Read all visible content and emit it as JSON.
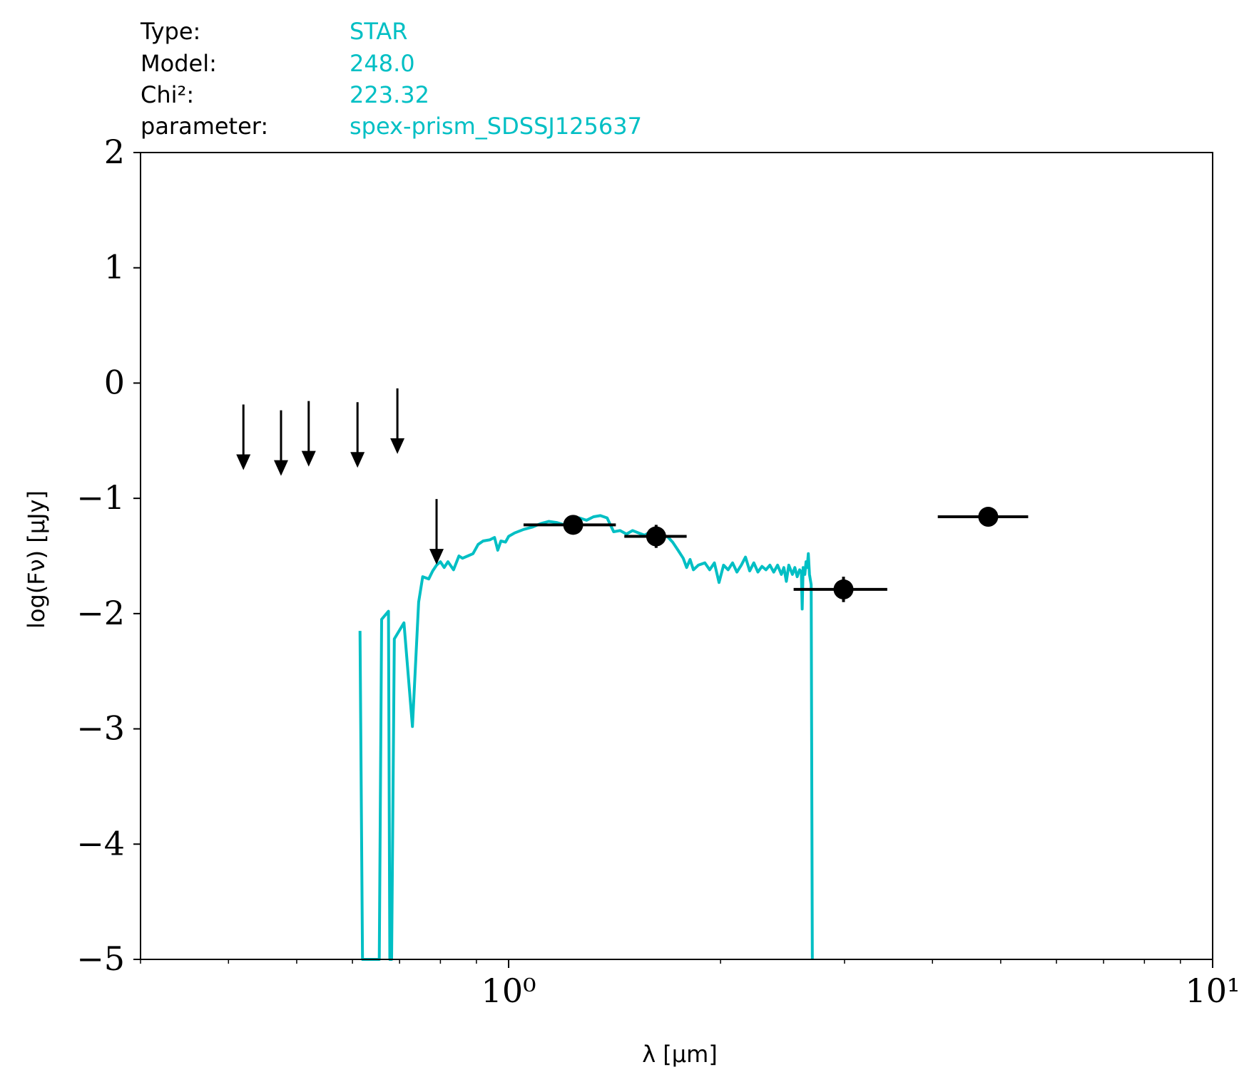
{
  "info": {
    "rows": [
      {
        "label": "Type:",
        "value": "STAR"
      },
      {
        "label": "Model:",
        "value": "248.0"
      },
      {
        "label": "Chi²:",
        "value": "223.32"
      },
      {
        "label": "parameter:",
        "value": "spex-prism_SDSSJ125637"
      }
    ],
    "value_color": "#00BFC4"
  },
  "chart_data": {
    "type": "scatter",
    "title": "",
    "xlabel": "λ [μm]",
    "ylabel": "log(Fν) [μJy]",
    "xscale": "log",
    "xlim": [
      0.3,
      10
    ],
    "ylim": [
      -5,
      2
    ],
    "grid": false,
    "x_tick_labels": [
      {
        "value": 1,
        "label": "10⁰"
      },
      {
        "value": 10,
        "label": "10¹"
      }
    ],
    "y_tick_labels": [
      {
        "value": 2,
        "label": "2"
      },
      {
        "value": 1,
        "label": "1"
      },
      {
        "value": 0,
        "label": "0"
      },
      {
        "value": -1,
        "label": "−1"
      },
      {
        "value": -2,
        "label": "−2"
      },
      {
        "value": -3,
        "label": "−3"
      },
      {
        "value": -4,
        "label": "−4"
      },
      {
        "value": -5,
        "label": "−5"
      }
    ],
    "model_spectrum": {
      "color": "#00BFC4",
      "points": [
        [
          0.615,
          -2.15
        ],
        [
          0.62,
          -5.0
        ],
        [
          0.655,
          -5.0
        ],
        [
          0.66,
          -2.05
        ],
        [
          0.675,
          -1.98
        ],
        [
          0.678,
          -5.0
        ],
        [
          0.682,
          -5.0
        ],
        [
          0.688,
          -2.22
        ],
        [
          0.71,
          -2.08
        ],
        [
          0.73,
          -2.98
        ],
        [
          0.745,
          -1.9
        ],
        [
          0.755,
          -1.68
        ],
        [
          0.77,
          -1.7
        ],
        [
          0.78,
          -1.63
        ],
        [
          0.79,
          -1.58
        ],
        [
          0.8,
          -1.55
        ],
        [
          0.81,
          -1.6
        ],
        [
          0.82,
          -1.55
        ],
        [
          0.835,
          -1.62
        ],
        [
          0.85,
          -1.5
        ],
        [
          0.86,
          -1.52
        ],
        [
          0.875,
          -1.5
        ],
        [
          0.89,
          -1.48
        ],
        [
          0.905,
          -1.4
        ],
        [
          0.92,
          -1.37
        ],
        [
          0.94,
          -1.36
        ],
        [
          0.955,
          -1.34
        ],
        [
          0.965,
          -1.45
        ],
        [
          0.975,
          -1.37
        ],
        [
          0.99,
          -1.38
        ],
        [
          1.0,
          -1.33
        ],
        [
          1.02,
          -1.3
        ],
        [
          1.05,
          -1.27
        ],
        [
          1.08,
          -1.25
        ],
        [
          1.11,
          -1.22
        ],
        [
          1.14,
          -1.2
        ],
        [
          1.17,
          -1.21
        ],
        [
          1.2,
          -1.23
        ],
        [
          1.23,
          -1.2
        ],
        [
          1.26,
          -1.17
        ],
        [
          1.29,
          -1.19
        ],
        [
          1.32,
          -1.16
        ],
        [
          1.35,
          -1.15
        ],
        [
          1.38,
          -1.17
        ],
        [
          1.41,
          -1.29
        ],
        [
          1.44,
          -1.28
        ],
        [
          1.47,
          -1.31
        ],
        [
          1.5,
          -1.28
        ],
        [
          1.53,
          -1.3
        ],
        [
          1.56,
          -1.32
        ],
        [
          1.59,
          -1.29
        ],
        [
          1.62,
          -1.31
        ],
        [
          1.65,
          -1.34
        ],
        [
          1.68,
          -1.33
        ],
        [
          1.71,
          -1.38
        ],
        [
          1.74,
          -1.45
        ],
        [
          1.77,
          -1.52
        ],
        [
          1.79,
          -1.6
        ],
        [
          1.81,
          -1.53
        ],
        [
          1.83,
          -1.62
        ],
        [
          1.86,
          -1.58
        ],
        [
          1.9,
          -1.56
        ],
        [
          1.93,
          -1.62
        ],
        [
          1.96,
          -1.56
        ],
        [
          1.99,
          -1.73
        ],
        [
          2.02,
          -1.58
        ],
        [
          2.05,
          -1.62
        ],
        [
          2.08,
          -1.56
        ],
        [
          2.11,
          -1.64
        ],
        [
          2.14,
          -1.58
        ],
        [
          2.17,
          -1.51
        ],
        [
          2.2,
          -1.63
        ],
        [
          2.23,
          -1.56
        ],
        [
          2.26,
          -1.64
        ],
        [
          2.29,
          -1.59
        ],
        [
          2.32,
          -1.62
        ],
        [
          2.35,
          -1.58
        ],
        [
          2.38,
          -1.64
        ],
        [
          2.41,
          -1.58
        ],
        [
          2.44,
          -1.66
        ],
        [
          2.46,
          -1.6
        ],
        [
          2.48,
          -1.72
        ],
        [
          2.5,
          -1.58
        ],
        [
          2.53,
          -1.66
        ],
        [
          2.55,
          -1.6
        ],
        [
          2.57,
          -1.68
        ],
        [
          2.59,
          -1.62
        ],
        [
          2.605,
          -1.64
        ],
        [
          2.612,
          -1.96
        ],
        [
          2.62,
          -1.6
        ],
        [
          2.635,
          -1.66
        ],
        [
          2.645,
          -1.55
        ],
        [
          2.655,
          -1.6
        ],
        [
          2.665,
          -1.48
        ],
        [
          2.675,
          -1.66
        ],
        [
          2.69,
          -1.75
        ],
        [
          2.7,
          -5.0
        ]
      ]
    },
    "upper_limits": [
      {
        "x": 0.42,
        "y": -0.73
      },
      {
        "x": 0.475,
        "y": -0.78
      },
      {
        "x": 0.52,
        "y": -0.7
      },
      {
        "x": 0.61,
        "y": -0.71
      },
      {
        "x": 0.695,
        "y": -0.59
      },
      {
        "x": 0.79,
        "y": -1.55
      }
    ],
    "detections": [
      {
        "x": 1.235,
        "y": -1.23,
        "xerr": [
          1.05,
          1.42
        ],
        "yerr": 0.06
      },
      {
        "x": 1.62,
        "y": -1.33,
        "xerr": [
          1.46,
          1.79
        ],
        "yerr": 0.1
      },
      {
        "x": 2.99,
        "y": -1.79,
        "xerr": [
          2.54,
          3.45
        ],
        "yerr": 0.11
      },
      {
        "x": 4.8,
        "y": -1.16,
        "xerr": [
          4.07,
          5.47
        ],
        "yerr": 0.02
      }
    ]
  }
}
